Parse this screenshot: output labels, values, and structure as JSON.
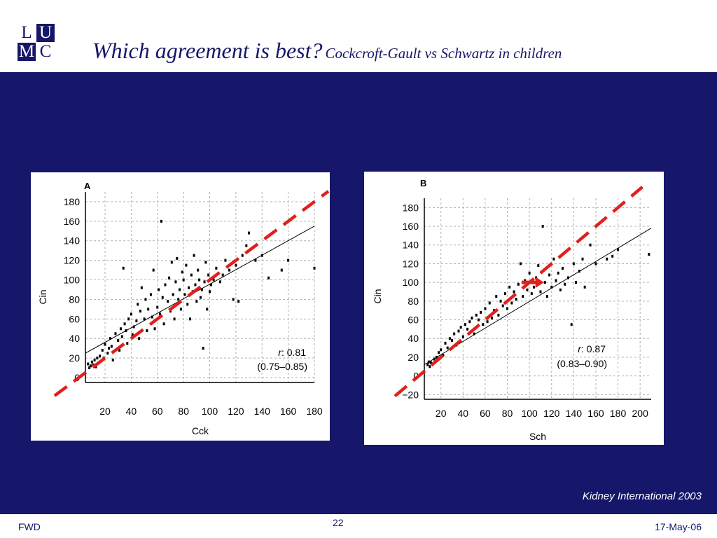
{
  "header": {
    "logo": {
      "l": "L",
      "u": "U",
      "m": "M",
      "c": "C"
    },
    "title_main": "Which agreement is best?",
    "title_sub": "Cockcroft-Gault vs Schwartz in children"
  },
  "source": "Kidney International 2003",
  "footer": {
    "left": "FWD",
    "page": "22",
    "date": "17-May-06"
  },
  "colors": {
    "navy": "#16166a",
    "identity_line": "#e0201c",
    "fit_line": "#000000",
    "grid": "#b0b0b0"
  },
  "chart_data": [
    {
      "type": "scatter",
      "panel": "A",
      "xlabel": "Cck",
      "ylabel": "Cin",
      "xlim": [
        5,
        180
      ],
      "ylim": [
        -5,
        190
      ],
      "xticks": [
        20,
        40,
        60,
        80,
        100,
        120,
        140,
        160,
        180
      ],
      "yticks": [
        0,
        20,
        40,
        60,
        80,
        100,
        120,
        140,
        160,
        180
      ],
      "r_label": "r",
      "r_value": ": 0.81",
      "ci_text": "(0.75–0.85)",
      "fit_line": [
        [
          5,
          25
        ],
        [
          180,
          155
        ]
      ],
      "identity_line": [
        [
          5,
          5
        ],
        [
          180,
          180
        ]
      ],
      "points": [
        [
          7,
          14
        ],
        [
          8,
          10
        ],
        [
          9,
          12
        ],
        [
          10,
          16
        ],
        [
          11,
          13
        ],
        [
          12,
          18
        ],
        [
          13,
          11
        ],
        [
          14,
          20
        ],
        [
          15,
          15
        ],
        [
          16,
          22
        ],
        [
          18,
          28
        ],
        [
          19,
          20
        ],
        [
          20,
          34
        ],
        [
          22,
          25
        ],
        [
          23,
          30
        ],
        [
          24,
          40
        ],
        [
          25,
          32
        ],
        [
          26,
          18
        ],
        [
          28,
          45
        ],
        [
          30,
          38
        ],
        [
          31,
          28
        ],
        [
          32,
          50
        ],
        [
          33,
          42
        ],
        [
          34,
          112
        ],
        [
          35,
          55
        ],
        [
          36,
          48
        ],
        [
          37,
          35
        ],
        [
          38,
          60
        ],
        [
          40,
          65
        ],
        [
          41,
          44
        ],
        [
          42,
          52
        ],
        [
          44,
          58
        ],
        [
          45,
          75
        ],
        [
          46,
          40
        ],
        [
          47,
          68
        ],
        [
          48,
          92
        ],
        [
          50,
          60
        ],
        [
          51,
          80
        ],
        [
          52,
          48
        ],
        [
          53,
          70
        ],
        [
          55,
          85
        ],
        [
          56,
          62
        ],
        [
          57,
          110
        ],
        [
          58,
          50
        ],
        [
          60,
          72
        ],
        [
          61,
          90
        ],
        [
          62,
          65
        ],
        [
          63,
          160
        ],
        [
          64,
          82
        ],
        [
          65,
          55
        ],
        [
          66,
          95
        ],
        [
          68,
          78
        ],
        [
          69,
          102
        ],
        [
          70,
          68
        ],
        [
          71,
          118
        ],
        [
          72,
          85
        ],
        [
          73,
          60
        ],
        [
          74,
          98
        ],
        [
          75,
          122
        ],
        [
          76,
          80
        ],
        [
          77,
          90
        ],
        [
          78,
          70
        ],
        [
          79,
          108
        ],
        [
          80,
          100
        ],
        [
          81,
          85
        ],
        [
          82,
          115
        ],
        [
          83,
          75
        ],
        [
          84,
          92
        ],
        [
          85,
          60
        ],
        [
          86,
          105
        ],
        [
          87,
          88
        ],
        [
          88,
          125
        ],
        [
          89,
          95
        ],
        [
          90,
          78
        ],
        [
          91,
          110
        ],
        [
          92,
          100
        ],
        [
          93,
          82
        ],
        [
          94,
          90
        ],
        [
          95,
          30
        ],
        [
          96,
          98
        ],
        [
          97,
          118
        ],
        [
          98,
          70
        ],
        [
          99,
          105
        ],
        [
          100,
          88
        ],
        [
          101,
          95
        ],
        [
          103,
          100
        ],
        [
          105,
          112
        ],
        [
          108,
          98
        ],
        [
          110,
          105
        ],
        [
          112,
          120
        ],
        [
          115,
          110
        ],
        [
          118,
          80
        ],
        [
          120,
          115
        ],
        [
          122,
          78
        ],
        [
          125,
          125
        ],
        [
          128,
          135
        ],
        [
          130,
          148
        ],
        [
          135,
          120
        ],
        [
          140,
          125
        ],
        [
          145,
          102
        ],
        [
          155,
          110
        ],
        [
          160,
          120
        ],
        [
          180,
          112
        ]
      ]
    },
    {
      "type": "scatter",
      "panel": "B",
      "xlabel": "Sch",
      "ylabel": "Cin",
      "xlim": [
        5,
        210
      ],
      "ylim": [
        -25,
        190
      ],
      "xticks": [
        20,
        40,
        60,
        80,
        100,
        120,
        140,
        160,
        180,
        200
      ],
      "yticks": [
        -20,
        0,
        20,
        40,
        60,
        80,
        100,
        120,
        140,
        160,
        180
      ],
      "r_label": "r",
      "r_value": ": 0.87",
      "ci_text": "(0.83–0.90)",
      "fit_line": [
        [
          5,
          12
        ],
        [
          210,
          158
        ]
      ],
      "identity_line": [
        [
          5,
          5
        ],
        [
          190,
          190
        ]
      ],
      "arrow": {
        "from": [
          93,
          100
        ],
        "to": [
          113,
          100
        ]
      },
      "points": [
        [
          8,
          12
        ],
        [
          9,
          15
        ],
        [
          10,
          10
        ],
        [
          11,
          14
        ],
        [
          12,
          13
        ],
        [
          14,
          18
        ],
        [
          16,
          20
        ],
        [
          18,
          25
        ],
        [
          20,
          28
        ],
        [
          22,
          22
        ],
        [
          24,
          35
        ],
        [
          26,
          30
        ],
        [
          28,
          40
        ],
        [
          30,
          38
        ],
        [
          32,
          45
        ],
        [
          34,
          33
        ],
        [
          36,
          48
        ],
        [
          38,
          52
        ],
        [
          40,
          42
        ],
        [
          42,
          55
        ],
        [
          44,
          50
        ],
        [
          46,
          58
        ],
        [
          48,
          62
        ],
        [
          50,
          45
        ],
        [
          52,
          65
        ],
        [
          54,
          60
        ],
        [
          56,
          68
        ],
        [
          58,
          55
        ],
        [
          60,
          72
        ],
        [
          62,
          58
        ],
        [
          64,
          78
        ],
        [
          66,
          62
        ],
        [
          68,
          70
        ],
        [
          70,
          85
        ],
        [
          72,
          65
        ],
        [
          74,
          80
        ],
        [
          76,
          75
        ],
        [
          78,
          88
        ],
        [
          80,
          72
        ],
        [
          82,
          95
        ],
        [
          84,
          78
        ],
        [
          86,
          90
        ],
        [
          88,
          82
        ],
        [
          90,
          98
        ],
        [
          92,
          120
        ],
        [
          94,
          85
        ],
        [
          96,
          102
        ],
        [
          98,
          92
        ],
        [
          100,
          110
        ],
        [
          102,
          88
        ],
        [
          104,
          95
        ],
        [
          106,
          105
        ],
        [
          108,
          118
        ],
        [
          110,
          90
        ],
        [
          112,
          160
        ],
        [
          114,
          100
        ],
        [
          116,
          85
        ],
        [
          118,
          108
        ],
        [
          120,
          95
        ],
        [
          122,
          125
        ],
        [
          124,
          102
        ],
        [
          126,
          110
        ],
        [
          128,
          92
        ],
        [
          130,
          115
        ],
        [
          132,
          98
        ],
        [
          135,
          105
        ],
        [
          138,
          55
        ],
        [
          140,
          120
        ],
        [
          142,
          100
        ],
        [
          145,
          112
        ],
        [
          148,
          125
        ],
        [
          150,
          95
        ],
        [
          155,
          140
        ],
        [
          160,
          120
        ],
        [
          170,
          125
        ],
        [
          175,
          128
        ],
        [
          180,
          135
        ],
        [
          208,
          130
        ]
      ]
    }
  ]
}
